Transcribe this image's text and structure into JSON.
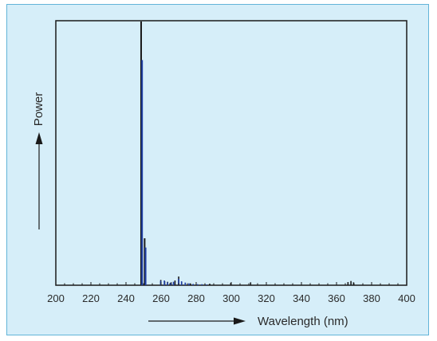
{
  "chart_data": {
    "type": "bar",
    "title": "",
    "xlabel": "Wavelength (nm)",
    "ylabel": "Power",
    "xlim": [
      200,
      400
    ],
    "ylim": [
      0,
      100
    ],
    "x_ticks": [
      200,
      220,
      240,
      260,
      280,
      300,
      320,
      340,
      360,
      380,
      400
    ],
    "grid": false,
    "legend": "none",
    "colors": {
      "panel_background": "#d6eef9",
      "frame_border": "#62b4d8",
      "blue_line": "#1f3fa6",
      "black_line": "#1a1a1a"
    },
    "series": [
      {
        "color": "blue",
        "x": [
          248.9,
          250.9,
          259.5,
          261.6,
          263.4,
          265.1,
          266.8,
          269.7,
          271.4,
          273.5,
          275.6,
          278.0,
          280.5,
          283.0,
          285.5
        ],
        "values": [
          85.4,
          14.3,
          1.6,
          1.8,
          1.1,
          0.9,
          1.3,
          2.4,
          1.5,
          1.0,
          0.7,
          0.5,
          0.4,
          0.4,
          0.3
        ]
      },
      {
        "color": "black",
        "x": [
          248.9,
          250.9,
          260.1,
          262.3,
          264.0,
          266.0,
          268.2,
          270.3,
          272.0,
          277.0,
          288.0,
          300.0,
          311.3,
          366.8,
          368.5,
          370.0
        ],
        "values": [
          100.0,
          17.8,
          2.0,
          1.5,
          1.3,
          1.1,
          1.8,
          3.3,
          1.2,
          0.7,
          0.6,
          0.9,
          1.1,
          1.2,
          1.6,
          1.1
        ]
      }
    ]
  }
}
